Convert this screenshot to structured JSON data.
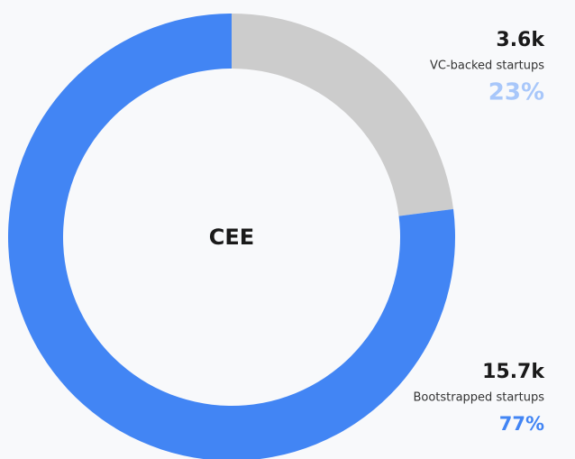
{
  "chart_data": {
    "type": "donut",
    "center_label": "CEE",
    "categories": [
      "VC-backed startups",
      "Bootstrapped startups"
    ],
    "values": [
      23,
      77
    ],
    "value_labels": [
      "23%",
      "77%"
    ],
    "counts": [
      3600,
      15700
    ],
    "count_labels": [
      "3.6k",
      "15.7k"
    ],
    "colors": [
      "#cccccc",
      "#4285f4"
    ],
    "label_colors": [
      "#a8c7fa",
      "#4285f4"
    ]
  }
}
